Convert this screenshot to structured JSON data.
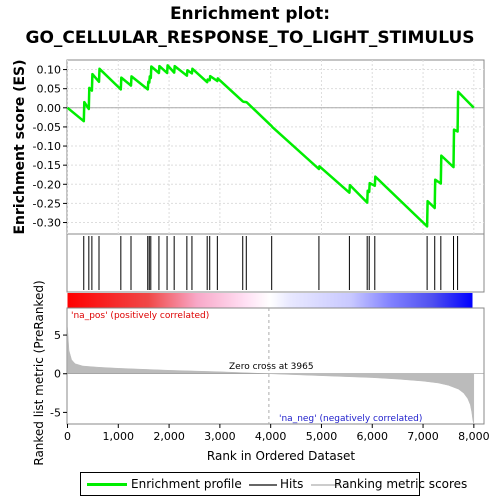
{
  "title_line1": "Enrichment plot:",
  "title_line2": "GO_CELLULAR_RESPONSE_TO_LIGHT_STIMULUS",
  "chart_data": {
    "type": "line",
    "x_axis": {
      "label": "Rank in Ordered Dataset",
      "range": [
        0,
        8200
      ],
      "ticks": [
        0,
        1000,
        2000,
        3000,
        4000,
        5000,
        6000,
        7000,
        8000
      ],
      "tick_labels": [
        "0",
        "1,000",
        "2,000",
        "3,000",
        "4,000",
        "5,000",
        "6,000",
        "7,000",
        "8,000"
      ]
    },
    "es_panel": {
      "ylabel": "Enrichment score (ES)",
      "ylim": [
        -0.33,
        0.125
      ],
      "yticks": [
        0.1,
        0.05,
        0.0,
        -0.05,
        -0.1,
        -0.15,
        -0.2,
        -0.25,
        -0.3
      ],
      "ytick_labels": [
        "0.10",
        "0.05",
        "0.00",
        "-0.05",
        "-0.10",
        "-0.15",
        "-0.20",
        "-0.25",
        "-0.30"
      ],
      "grid": true,
      "color": "#00ee00",
      "profile": {
        "x": [
          0,
          320,
          330,
          420,
          430,
          480,
          490,
          620,
          630,
          1050,
          1060,
          1250,
          1260,
          1580,
          1590,
          1610,
          1620,
          1640,
          1650,
          1800,
          1810,
          1960,
          1970,
          2100,
          2110,
          2350,
          2360,
          2450,
          2460,
          2750,
          2760,
          2800,
          2810,
          2950,
          2960,
          3450,
          3460,
          3520,
          3530,
          4020,
          4030,
          4950,
          4960,
          5550,
          5560,
          5900,
          5910,
          5940,
          5950,
          6050,
          6060,
          7080,
          7090,
          7230,
          7240,
          7350,
          7360,
          7600,
          7610,
          7680,
          7690,
          8000
        ],
        "y": [
          0.0,
          -0.035,
          0.015,
          -0.003,
          0.052,
          0.045,
          0.088,
          0.068,
          0.102,
          0.048,
          0.079,
          0.058,
          0.082,
          0.048,
          0.068,
          0.066,
          0.082,
          0.078,
          0.108,
          0.091,
          0.109,
          0.091,
          0.111,
          0.092,
          0.109,
          0.084,
          0.098,
          0.09,
          0.102,
          0.067,
          0.074,
          0.072,
          0.083,
          0.07,
          0.077,
          0.017,
          0.016,
          0.015,
          0.014,
          -0.048,
          -0.05,
          -0.16,
          -0.153,
          -0.222,
          -0.202,
          -0.248,
          -0.217,
          -0.22,
          -0.197,
          -0.204,
          -0.18,
          -0.31,
          -0.244,
          -0.262,
          -0.188,
          -0.198,
          -0.125,
          -0.155,
          -0.057,
          -0.062,
          0.042,
          0.0
        ]
      }
    },
    "hits": [
      320,
      420,
      480,
      620,
      1050,
      1250,
      1580,
      1610,
      1640,
      1800,
      1960,
      2100,
      2350,
      2450,
      2750,
      2800,
      2950,
      3450,
      3520,
      4020,
      4950,
      5550,
      5900,
      5940,
      6050,
      7080,
      7230,
      7350,
      7600,
      7680
    ],
    "rank_bar": {
      "positive_label": "'na_pos' (positively correlated)",
      "negative_label": "'na_neg' (negatively correlated)",
      "positive_color": "#ff0000",
      "negative_color": "#0000ff"
    },
    "metric_panel": {
      "ylabel": "Ranked list metric (PreRanked)",
      "ylim": [
        -6.5,
        8.5
      ],
      "yticks": [
        5,
        0,
        -5
      ],
      "ytick_labels": [
        "5",
        "0",
        "-5"
      ],
      "zero_cross_rank": 3965,
      "zero_cross_label": "Zero cross at 3965",
      "color": "#bbbbbb",
      "profile": {
        "x": [
          0,
          30,
          80,
          150,
          300,
          600,
          1000,
          2000,
          3000,
          3965,
          5000,
          6000,
          6500,
          7000,
          7300,
          7500,
          7700,
          7800,
          7880,
          7930,
          7960,
          7980,
          8000
        ],
        "y": [
          6.0,
          3.0,
          1.8,
          1.3,
          1.0,
          0.85,
          0.7,
          0.45,
          0.25,
          0.0,
          -0.25,
          -0.5,
          -0.7,
          -0.95,
          -1.2,
          -1.5,
          -2.0,
          -2.5,
          -3.2,
          -4.0,
          -5.0,
          -6.0,
          -6.5
        ]
      }
    },
    "legend": {
      "entries": [
        "Enrichment profile",
        "Hits",
        "Ranking metric scores"
      ],
      "colors": [
        "#00ee00",
        "#666666",
        "#cccccc"
      ]
    }
  }
}
